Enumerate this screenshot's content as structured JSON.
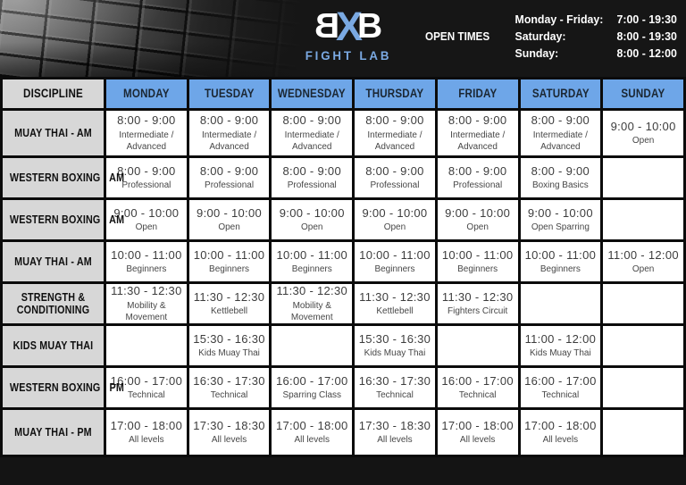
{
  "header": {
    "logo": {
      "b1": "B",
      "x": "X",
      "b2": "B",
      "subtitle": "FIGHT LAB"
    },
    "open_times": {
      "label": "OPEN TIMES",
      "entries": [
        {
          "days": "Monday - Friday:",
          "hours": "7:00 - 19:30"
        },
        {
          "days": "Saturday:",
          "hours": "8:00 - 19:30"
        },
        {
          "days": "Sunday:",
          "hours": "8:00 - 12:00"
        }
      ]
    }
  },
  "table": {
    "discipline_header": "DISCIPLINE",
    "day_headers": [
      "MONDAY",
      "TUESDAY",
      "WEDNESDAY",
      "THURSDAY",
      "FRIDAY",
      "SATURDAY",
      "SUNDAY"
    ],
    "rows": [
      {
        "discipline": "MUAY THAI - AM",
        "cells": [
          {
            "time": "8:00 - 9:00",
            "detail": "Intermediate / Advanced"
          },
          {
            "time": "8:00 - 9:00",
            "detail": "Intermediate / Advanced"
          },
          {
            "time": "8:00 - 9:00",
            "detail": "Intermediate / Advanced"
          },
          {
            "time": "8:00 - 9:00",
            "detail": "Intermediate / Advanced"
          },
          {
            "time": "8:00 - 9:00",
            "detail": "Intermediate / Advanced"
          },
          {
            "time": "8:00 - 9:00",
            "detail": "Intermediate / Advanced"
          },
          {
            "time": "9:00 - 10:00",
            "detail": "Open"
          }
        ]
      },
      {
        "discipline": "WESTERN BOXING - AM",
        "cells": [
          {
            "time": "8:00 - 9:00",
            "detail": "Professional"
          },
          {
            "time": "8:00 - 9:00",
            "detail": "Professional"
          },
          {
            "time": "8:00 - 9:00",
            "detail": "Professional"
          },
          {
            "time": "8:00 - 9:00",
            "detail": "Professional"
          },
          {
            "time": "8:00 - 9:00",
            "detail": "Professional"
          },
          {
            "time": "8:00 - 9:00",
            "detail": "Boxing Basics"
          },
          {
            "time": "",
            "detail": ""
          }
        ]
      },
      {
        "discipline": "WESTERN BOXING - AM",
        "cells": [
          {
            "time": "9:00 - 10:00",
            "detail": "Open"
          },
          {
            "time": "9:00 - 10:00",
            "detail": "Open"
          },
          {
            "time": "9:00 - 10:00",
            "detail": "Open"
          },
          {
            "time": "9:00 - 10:00",
            "detail": "Open"
          },
          {
            "time": "9:00 - 10:00",
            "detail": "Open"
          },
          {
            "time": "9:00 - 10:00",
            "detail": "Open Sparring"
          },
          {
            "time": "",
            "detail": ""
          }
        ]
      },
      {
        "discipline": "MUAY THAI - AM",
        "cells": [
          {
            "time": "10:00 - 11:00",
            "detail": "Beginners"
          },
          {
            "time": "10:00 - 11:00",
            "detail": "Beginners"
          },
          {
            "time": "10:00 - 11:00",
            "detail": "Beginners"
          },
          {
            "time": "10:00 - 11:00",
            "detail": "Beginners"
          },
          {
            "time": "10:00 - 11:00",
            "detail": "Beginners"
          },
          {
            "time": "10:00 - 11:00",
            "detail": "Beginners"
          },
          {
            "time": "11:00 - 12:00",
            "detail": "Open"
          }
        ]
      },
      {
        "discipline": "STRENGTH &\nCONDITIONING",
        "cells": [
          {
            "time": "11:30 - 12:30",
            "detail": "Mobility & Movement"
          },
          {
            "time": "11:30 - 12:30",
            "detail": "Kettlebell"
          },
          {
            "time": "11:30 - 12:30",
            "detail": "Mobility & Movement"
          },
          {
            "time": "11:30 - 12:30",
            "detail": "Kettlebell"
          },
          {
            "time": "11:30 - 12:30",
            "detail": "Fighters Circuit"
          },
          {
            "time": "",
            "detail": ""
          },
          {
            "time": "",
            "detail": ""
          }
        ]
      },
      {
        "discipline": "KIDS MUAY THAI",
        "cells": [
          {
            "time": "",
            "detail": ""
          },
          {
            "time": "15:30 - 16:30",
            "detail": "Kids Muay Thai"
          },
          {
            "time": "",
            "detail": ""
          },
          {
            "time": "15:30 - 16:30",
            "detail": "Kids Muay Thai"
          },
          {
            "time": "",
            "detail": ""
          },
          {
            "time": "11:00 - 12:00",
            "detail": "Kids Muay Thai"
          },
          {
            "time": "",
            "detail": ""
          }
        ]
      },
      {
        "discipline": "WESTERN BOXING - PM",
        "cells": [
          {
            "time": "16:00 - 17:00",
            "detail": "Technical"
          },
          {
            "time": "16:30 - 17:30",
            "detail": "Technical"
          },
          {
            "time": "16:00 - 17:00",
            "detail": "Sparring Class"
          },
          {
            "time": "16:30 - 17:30",
            "detail": "Technical"
          },
          {
            "time": "16:00 - 17:00",
            "detail": "Technical"
          },
          {
            "time": "16:00 - 17:00",
            "detail": "Technical"
          },
          {
            "time": "",
            "detail": ""
          }
        ]
      },
      {
        "discipline": "MUAY THAI - PM",
        "cells": [
          {
            "time": "17:00 - 18:00",
            "detail": "All levels"
          },
          {
            "time": "17:30 - 18:30",
            "detail": "All levels"
          },
          {
            "time": "17:00 - 18:00",
            "detail": "All levels"
          },
          {
            "time": "17:30 - 18:30",
            "detail": "All levels"
          },
          {
            "time": "17:00 - 18:00",
            "detail": "All levels"
          },
          {
            "time": "17:00 - 18:00",
            "detail": "All levels"
          },
          {
            "time": "",
            "detail": ""
          }
        ]
      }
    ]
  },
  "colors": {
    "header_blue": "#6ea6e8",
    "cell_gray": "#d7d7d7",
    "accent_blue": "#7aa9e2",
    "background": "#141414"
  }
}
